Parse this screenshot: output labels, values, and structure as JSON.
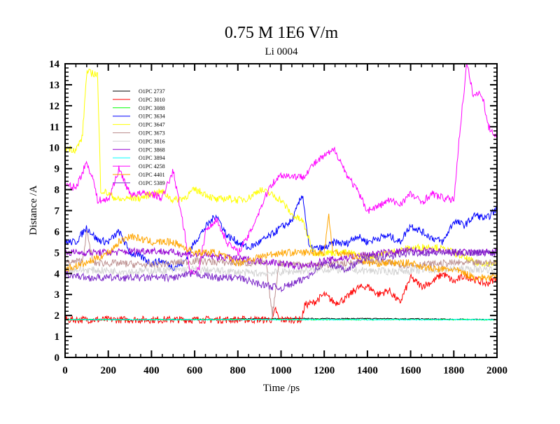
{
  "chart_data": {
    "type": "line",
    "title": "0.75 M 1E6 V/m",
    "subtitle": "Li 0004",
    "xlabel": "Time /ps",
    "ylabel": "Distance /A",
    "xlim": [
      0,
      2000
    ],
    "ylim": [
      0,
      14
    ],
    "xticks": [
      0,
      200,
      400,
      600,
      800,
      1000,
      1200,
      1400,
      1600,
      1800,
      2000
    ],
    "yticks": [
      0,
      1,
      2,
      3,
      4,
      5,
      6,
      7,
      8,
      9,
      10,
      11,
      12,
      13,
      14
    ],
    "legend_position": "top-left",
    "grid": false,
    "series": [
      {
        "name": "O1PC 2737",
        "color": "#000000",
        "points": [
          [
            0,
            1.8
          ],
          [
            500,
            1.8
          ],
          [
            1000,
            1.85
          ],
          [
            1500,
            1.85
          ],
          [
            2000,
            1.8
          ]
        ]
      },
      {
        "name": "O1PC 3010",
        "color": "#ff0000",
        "points": [
          [
            0,
            1.8
          ],
          [
            900,
            1.8
          ],
          [
            960,
            1.8
          ],
          [
            975,
            2.3
          ],
          [
            990,
            1.8
          ],
          [
            1095,
            1.8
          ],
          [
            1110,
            2.5
          ],
          [
            1150,
            2.6
          ],
          [
            1200,
            3.0
          ],
          [
            1250,
            2.6
          ],
          [
            1300,
            2.8
          ],
          [
            1350,
            3.3
          ],
          [
            1400,
            3.4
          ],
          [
            1450,
            3.0
          ],
          [
            1500,
            3.2
          ],
          [
            1550,
            2.6
          ],
          [
            1600,
            3.8
          ],
          [
            1650,
            3.4
          ],
          [
            1700,
            3.6
          ],
          [
            1750,
            4.0
          ],
          [
            1800,
            3.6
          ],
          [
            1850,
            3.9
          ],
          [
            1900,
            3.7
          ],
          [
            1950,
            3.5
          ],
          [
            2000,
            3.8
          ]
        ]
      },
      {
        "name": "O1PC 3088",
        "color": "#00ff00",
        "points": [
          [
            0,
            1.8
          ],
          [
            1000,
            1.8
          ],
          [
            2000,
            1.8
          ]
        ]
      },
      {
        "name": "O1PC 3634",
        "color": "#0000ff",
        "points": [
          [
            0,
            5.5
          ],
          [
            50,
            5.5
          ],
          [
            100,
            6.2
          ],
          [
            150,
            5.6
          ],
          [
            200,
            5.5
          ],
          [
            250,
            6.0
          ],
          [
            300,
            5.0
          ],
          [
            350,
            4.8
          ],
          [
            400,
            4.5
          ],
          [
            450,
            4.6
          ],
          [
            500,
            4.3
          ],
          [
            550,
            4.5
          ],
          [
            600,
            5.5
          ],
          [
            650,
            6.2
          ],
          [
            700,
            6.8
          ],
          [
            750,
            5.8
          ],
          [
            800,
            5.5
          ],
          [
            850,
            5.2
          ],
          [
            900,
            5.5
          ],
          [
            950,
            5.8
          ],
          [
            1000,
            6.2
          ],
          [
            1050,
            6.5
          ],
          [
            1100,
            7.8
          ],
          [
            1130,
            5.2
          ],
          [
            1200,
            5.2
          ],
          [
            1250,
            5.5
          ],
          [
            1300,
            5.4
          ],
          [
            1350,
            5.8
          ],
          [
            1400,
            5.5
          ],
          [
            1450,
            5.7
          ],
          [
            1500,
            5.8
          ],
          [
            1550,
            5.5
          ],
          [
            1600,
            6.3
          ],
          [
            1650,
            6.0
          ],
          [
            1700,
            5.7
          ],
          [
            1750,
            5.5
          ],
          [
            1800,
            6.5
          ],
          [
            1850,
            6.3
          ],
          [
            1900,
            6.8
          ],
          [
            1950,
            6.6
          ],
          [
            2000,
            7.1
          ]
        ]
      },
      {
        "name": "O1PC 3647",
        "color": "#ffff00",
        "points": [
          [
            0,
            10.0
          ],
          [
            50,
            9.9
          ],
          [
            80,
            10.5
          ],
          [
            100,
            13.6
          ],
          [
            150,
            13.5
          ],
          [
            165,
            8.0
          ],
          [
            200,
            7.8
          ],
          [
            250,
            7.5
          ],
          [
            300,
            7.6
          ],
          [
            350,
            7.6
          ],
          [
            400,
            7.8
          ],
          [
            450,
            7.9
          ],
          [
            500,
            7.5
          ],
          [
            550,
            7.6
          ],
          [
            600,
            8.0
          ],
          [
            650,
            7.8
          ],
          [
            700,
            7.5
          ],
          [
            750,
            7.6
          ],
          [
            800,
            7.5
          ],
          [
            850,
            7.6
          ],
          [
            900,
            8.0
          ],
          [
            950,
            7.8
          ],
          [
            1000,
            7.5
          ],
          [
            1050,
            6.8
          ],
          [
            1100,
            6.5
          ],
          [
            1150,
            5.0
          ],
          [
            1200,
            5.0
          ],
          [
            1300,
            5.0
          ],
          [
            1400,
            4.8
          ],
          [
            1500,
            5.0
          ],
          [
            1600,
            5.2
          ],
          [
            1700,
            5.3
          ],
          [
            1800,
            5.0
          ],
          [
            1900,
            4.5
          ],
          [
            2000,
            4.5
          ]
        ]
      },
      {
        "name": "O1PC 3673",
        "color": "#bc8f8f",
        "points": [
          [
            0,
            4.5
          ],
          [
            80,
            4.6
          ],
          [
            100,
            6.0
          ],
          [
            130,
            4.5
          ],
          [
            200,
            4.5
          ],
          [
            400,
            4.4
          ],
          [
            600,
            4.6
          ],
          [
            800,
            4.5
          ],
          [
            930,
            4.5
          ],
          [
            960,
            2.0
          ],
          [
            990,
            4.5
          ],
          [
            1200,
            4.4
          ],
          [
            1400,
            4.6
          ],
          [
            1600,
            4.4
          ],
          [
            1800,
            4.5
          ],
          [
            2000,
            4.5
          ]
        ]
      },
      {
        "name": "O1PC 3816",
        "color": "#d3d3d3",
        "points": [
          [
            0,
            4.2
          ],
          [
            300,
            4.1
          ],
          [
            600,
            4.2
          ],
          [
            900,
            4.0
          ],
          [
            1200,
            4.2
          ],
          [
            1500,
            4.1
          ],
          [
            1800,
            4.2
          ],
          [
            2000,
            4.2
          ]
        ]
      },
      {
        "name": "O1PC 3868",
        "color": "#9400d3",
        "points": [
          [
            0,
            5.0
          ],
          [
            200,
            5.0
          ],
          [
            400,
            5.1
          ],
          [
            600,
            4.9
          ],
          [
            800,
            4.7
          ],
          [
            1000,
            4.5
          ],
          [
            1100,
            4.3
          ],
          [
            1200,
            4.6
          ],
          [
            1400,
            4.9
          ],
          [
            1600,
            5.1
          ],
          [
            1800,
            5.0
          ],
          [
            2000,
            5.0
          ]
        ]
      },
      {
        "name": "O1PC 3894",
        "color": "#00ffff",
        "points": [
          [
            0,
            1.8
          ],
          [
            1000,
            1.8
          ],
          [
            2000,
            1.8
          ]
        ]
      },
      {
        "name": "O1PC 4258",
        "color": "#ff00ff",
        "points": [
          [
            0,
            8.2
          ],
          [
            50,
            8.1
          ],
          [
            100,
            9.3
          ],
          [
            130,
            8.5
          ],
          [
            150,
            7.5
          ],
          [
            200,
            7.5
          ],
          [
            250,
            9.0
          ],
          [
            300,
            7.8
          ],
          [
            400,
            7.8
          ],
          [
            450,
            7.6
          ],
          [
            500,
            8.9
          ],
          [
            550,
            6.2
          ],
          [
            580,
            4.0
          ],
          [
            620,
            4.2
          ],
          [
            650,
            6.0
          ],
          [
            700,
            6.6
          ],
          [
            750,
            5.5
          ],
          [
            800,
            5.0
          ],
          [
            850,
            5.8
          ],
          [
            900,
            7.0
          ],
          [
            950,
            8.2
          ],
          [
            1000,
            8.7
          ],
          [
            1100,
            8.6
          ],
          [
            1150,
            9.2
          ],
          [
            1200,
            9.6
          ],
          [
            1250,
            9.9
          ],
          [
            1300,
            8.8
          ],
          [
            1350,
            8.0
          ],
          [
            1400,
            7.0
          ],
          [
            1450,
            7.2
          ],
          [
            1500,
            7.5
          ],
          [
            1550,
            7.3
          ],
          [
            1600,
            7.8
          ],
          [
            1650,
            7.4
          ],
          [
            1700,
            7.8
          ],
          [
            1750,
            7.6
          ],
          [
            1800,
            7.5
          ],
          [
            1830,
            11.0
          ],
          [
            1860,
            14.0
          ],
          [
            1890,
            12.5
          ],
          [
            1930,
            12.6
          ],
          [
            1960,
            11.0
          ],
          [
            2000,
            10.5
          ]
        ]
      },
      {
        "name": "O1PC 4401",
        "color": "#ffa500",
        "points": [
          [
            0,
            4.2
          ],
          [
            100,
            4.5
          ],
          [
            200,
            5.0
          ],
          [
            250,
            5.5
          ],
          [
            300,
            5.8
          ],
          [
            400,
            5.5
          ],
          [
            500,
            5.5
          ],
          [
            600,
            5.0
          ],
          [
            700,
            5.0
          ],
          [
            800,
            4.5
          ],
          [
            900,
            4.8
          ],
          [
            1000,
            5.0
          ],
          [
            1100,
            5.0
          ],
          [
            1200,
            5.0
          ],
          [
            1220,
            6.8
          ],
          [
            1240,
            5.0
          ],
          [
            1300,
            5.0
          ],
          [
            1400,
            4.5
          ],
          [
            1500,
            4.5
          ],
          [
            1600,
            4.5
          ],
          [
            1700,
            4.2
          ],
          [
            1800,
            4.2
          ],
          [
            1900,
            3.8
          ],
          [
            2000,
            3.8
          ]
        ]
      },
      {
        "name": "O1PC 5389",
        "color": "#7b28c8",
        "points": [
          [
            0,
            4.0
          ],
          [
            100,
            3.8
          ],
          [
            200,
            3.8
          ],
          [
            300,
            3.8
          ],
          [
            400,
            3.8
          ],
          [
            500,
            3.8
          ],
          [
            600,
            4.0
          ],
          [
            700,
            3.8
          ],
          [
            800,
            3.8
          ],
          [
            900,
            3.5
          ],
          [
            1000,
            3.3
          ],
          [
            1100,
            3.7
          ],
          [
            1200,
            4.5
          ],
          [
            1300,
            4.2
          ],
          [
            1400,
            4.8
          ],
          [
            1500,
            4.8
          ],
          [
            1600,
            5.0
          ],
          [
            1700,
            5.0
          ],
          [
            1800,
            5.0
          ],
          [
            1900,
            5.0
          ],
          [
            2000,
            5.0
          ]
        ]
      }
    ]
  }
}
